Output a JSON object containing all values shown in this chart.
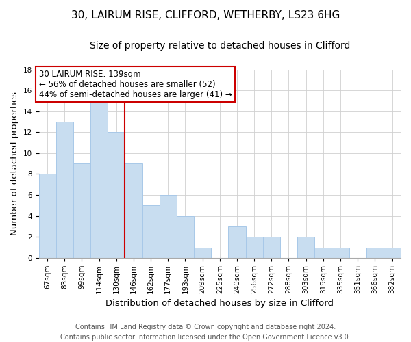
{
  "title_line1": "30, LAIRUM RISE, CLIFFORD, WETHERBY, LS23 6HG",
  "title_line2": "Size of property relative to detached houses in Clifford",
  "xlabel": "Distribution of detached houses by size in Clifford",
  "ylabel": "Number of detached properties",
  "categories": [
    "67sqm",
    "83sqm",
    "99sqm",
    "114sqm",
    "130sqm",
    "146sqm",
    "162sqm",
    "177sqm",
    "193sqm",
    "209sqm",
    "225sqm",
    "240sqm",
    "256sqm",
    "272sqm",
    "288sqm",
    "303sqm",
    "319sqm",
    "335sqm",
    "351sqm",
    "366sqm",
    "382sqm"
  ],
  "values": [
    8,
    13,
    9,
    15,
    12,
    9,
    5,
    6,
    4,
    1,
    0,
    3,
    2,
    2,
    0,
    2,
    1,
    1,
    0,
    1,
    1
  ],
  "bar_color": "#c8ddf0",
  "bar_edge_color": "#a8c8e8",
  "vline_x_index": 4.5,
  "vline_color": "#cc0000",
  "ylim": [
    0,
    18
  ],
  "yticks": [
    0,
    2,
    4,
    6,
    8,
    10,
    12,
    14,
    16,
    18
  ],
  "annotation_title": "30 LAIRUM RISE: 139sqm",
  "annotation_line1": "← 56% of detached houses are smaller (52)",
  "annotation_line2": "44% of semi-detached houses are larger (41) →",
  "footer_line1": "Contains HM Land Registry data © Crown copyright and database right 2024.",
  "footer_line2": "Contains public sector information licensed under the Open Government Licence v3.0.",
  "title_fontsize": 11,
  "subtitle_fontsize": 10,
  "axis_label_fontsize": 9.5,
  "tick_fontsize": 7.5,
  "annotation_fontsize": 8.5,
  "footer_fontsize": 7
}
